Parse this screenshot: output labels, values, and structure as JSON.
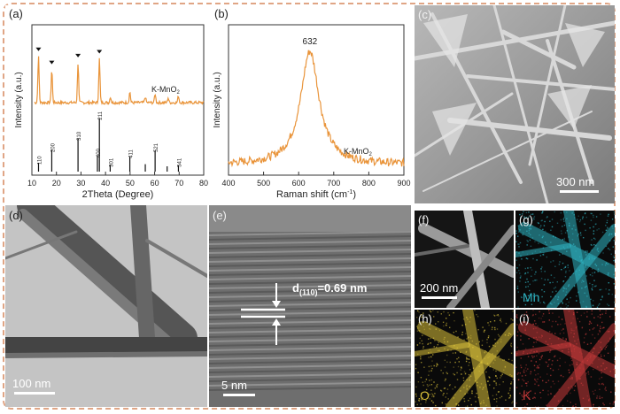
{
  "figure": {
    "panels": {
      "a": {
        "label": "(a)",
        "sample": "K-MnO",
        "sample_sub": "2",
        "xlabel": "2Theta (Degree)",
        "ylabel": "Intensity (a.u.)"
      },
      "b": {
        "label": "(b)",
        "sample": "K-MnO",
        "sample_sub": "2",
        "xlabel": "Raman shift (cm",
        "xlabel_sup": "-1",
        "xlabel_end": ")",
        "ylabel": "Intensity (a.u.)",
        "peak_label": "632"
      },
      "c": {
        "label": "(c)",
        "scale": "300 nm"
      },
      "d": {
        "label": "(d)",
        "scale": "100 nm"
      },
      "e": {
        "label": "(e)",
        "scale": "5 nm",
        "d_prefix": "d",
        "d_sub": "(110)",
        "d_value": "=0.69 nm"
      },
      "f": {
        "label": "(f)",
        "scale": "200 nm"
      },
      "g": {
        "label": "(g)",
        "element": "Mn",
        "color": "#2fb5c4"
      },
      "h": {
        "label": "(h)",
        "element": "O",
        "color": "#d9c03a"
      },
      "i": {
        "label": "(i)",
        "element": "K",
        "color": "#c83a3a"
      }
    }
  },
  "chart_data": [
    {
      "type": "line",
      "panel": "a",
      "xlabel": "2Theta (Degree)",
      "ylabel": "Intensity (a.u.)",
      "xlim": [
        10,
        80
      ],
      "x_ticks": [
        10,
        20,
        30,
        40,
        50,
        60,
        70,
        80
      ],
      "series": [
        {
          "name": "K-MnO2",
          "color": "#e9943a",
          "peaks": [
            {
              "x": 12.7,
              "h": 0.95
            },
            {
              "x": 18.1,
              "h": 0.68
            },
            {
              "x": 28.8,
              "h": 0.82
            },
            {
              "x": 37.5,
              "h": 0.9
            },
            {
              "x": 42.0,
              "h": 0.12
            },
            {
              "x": 49.9,
              "h": 0.22
            },
            {
              "x": 56.2,
              "h": 0.12
            },
            {
              "x": 60.2,
              "h": 0.18
            },
            {
              "x": 65.5,
              "h": 0.1
            },
            {
              "x": 69.7,
              "h": 0.14
            }
          ]
        }
      ],
      "marked_peaks_x": [
        12.7,
        18.1,
        28.8,
        37.5
      ],
      "reference_lines": [
        {
          "x": 12.7,
          "h": 0.16,
          "hkl": "110"
        },
        {
          "x": 18.1,
          "h": 0.4,
          "hkl": "200"
        },
        {
          "x": 28.8,
          "h": 0.62,
          "hkl": "310"
        },
        {
          "x": 36.7,
          "h": 0.3,
          "hkl": "400"
        },
        {
          "x": 37.5,
          "h": 1.0,
          "hkl": "211"
        },
        {
          "x": 41.9,
          "h": 0.12,
          "hkl": "301"
        },
        {
          "x": 49.9,
          "h": 0.28,
          "hkl": "411"
        },
        {
          "x": 56.2,
          "h": 0.14,
          "hkl": ""
        },
        {
          "x": 60.2,
          "h": 0.4,
          "hkl": "521"
        },
        {
          "x": 65.1,
          "h": 0.1,
          "hkl": ""
        },
        {
          "x": 69.7,
          "h": 0.12,
          "hkl": "541"
        }
      ]
    },
    {
      "type": "line",
      "panel": "b",
      "xlabel": "Raman shift (cm-1)",
      "ylabel": "Intensity (a.u.)",
      "xlim": [
        400,
        900
      ],
      "x_ticks": [
        400,
        500,
        600,
        700,
        800,
        900
      ],
      "series": [
        {
          "name": "K-MnO2",
          "color": "#e9943a",
          "peak_center": 632,
          "peak_label": "632"
        }
      ]
    }
  ]
}
